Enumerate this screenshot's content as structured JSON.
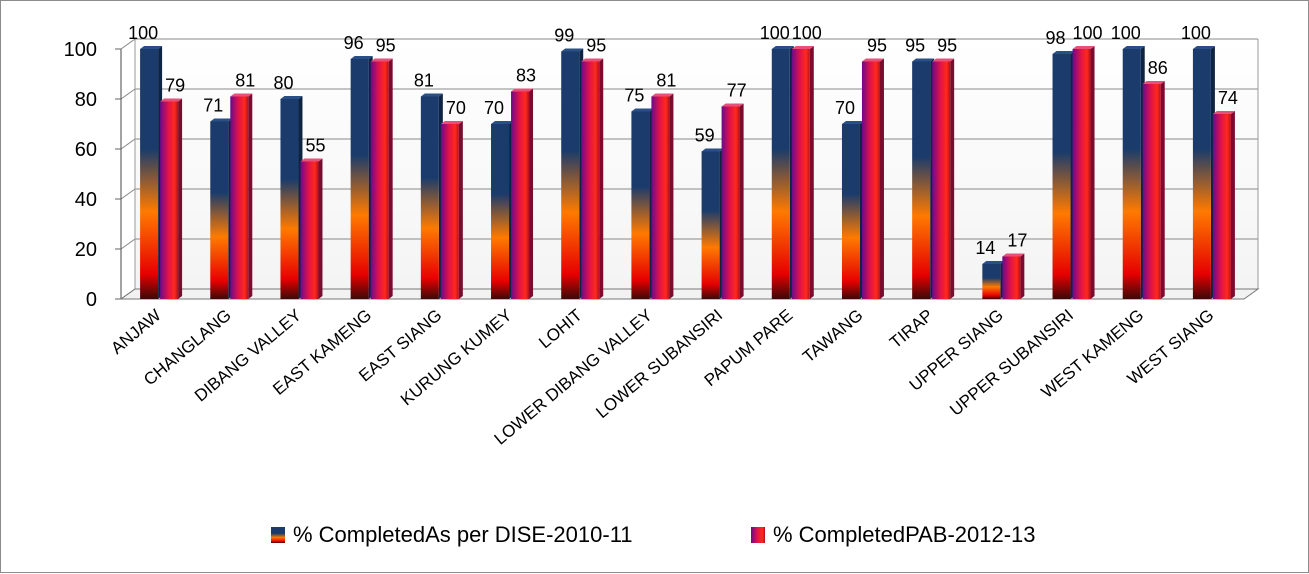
{
  "chart_data": {
    "type": "bar",
    "title": "",
    "xlabel": "",
    "ylabel": "",
    "ylim": [
      0,
      100
    ],
    "yticks": [
      "0",
      "20",
      "40",
      "60",
      "80",
      "100"
    ],
    "grid": true,
    "legend_position": "bottom",
    "categories": [
      "ANJAW",
      "CHANGLANG",
      "DIBANG VALLEY",
      "EAST KAMENG",
      "EAST SIANG",
      "KURUNG KUMEY",
      "LOHIT",
      "LOWER DIBANG VALLEY",
      "LOWER SUBANSIRI",
      "PAPUM PARE",
      "TAWANG",
      "TIRAP",
      "UPPER SIANG",
      "UPPER SUBANSIRI",
      "WEST KAMENG",
      "WEST SIANG"
    ],
    "series": [
      {
        "name": "% CompletedAs per DISE-2010-11",
        "values": [
          100,
          71,
          80,
          96,
          81,
          70,
          99,
          75,
          59,
          100,
          70,
          95,
          14,
          98,
          100,
          100
        ],
        "color": "#1f3d6e"
      },
      {
        "name": "% CompletedPAB-2012-13",
        "values": [
          79,
          81,
          55,
          95,
          70,
          83,
          95,
          81,
          77,
          100,
          95,
          95,
          17,
          100,
          86,
          74
        ],
        "color": "#c8145a"
      }
    ]
  }
}
